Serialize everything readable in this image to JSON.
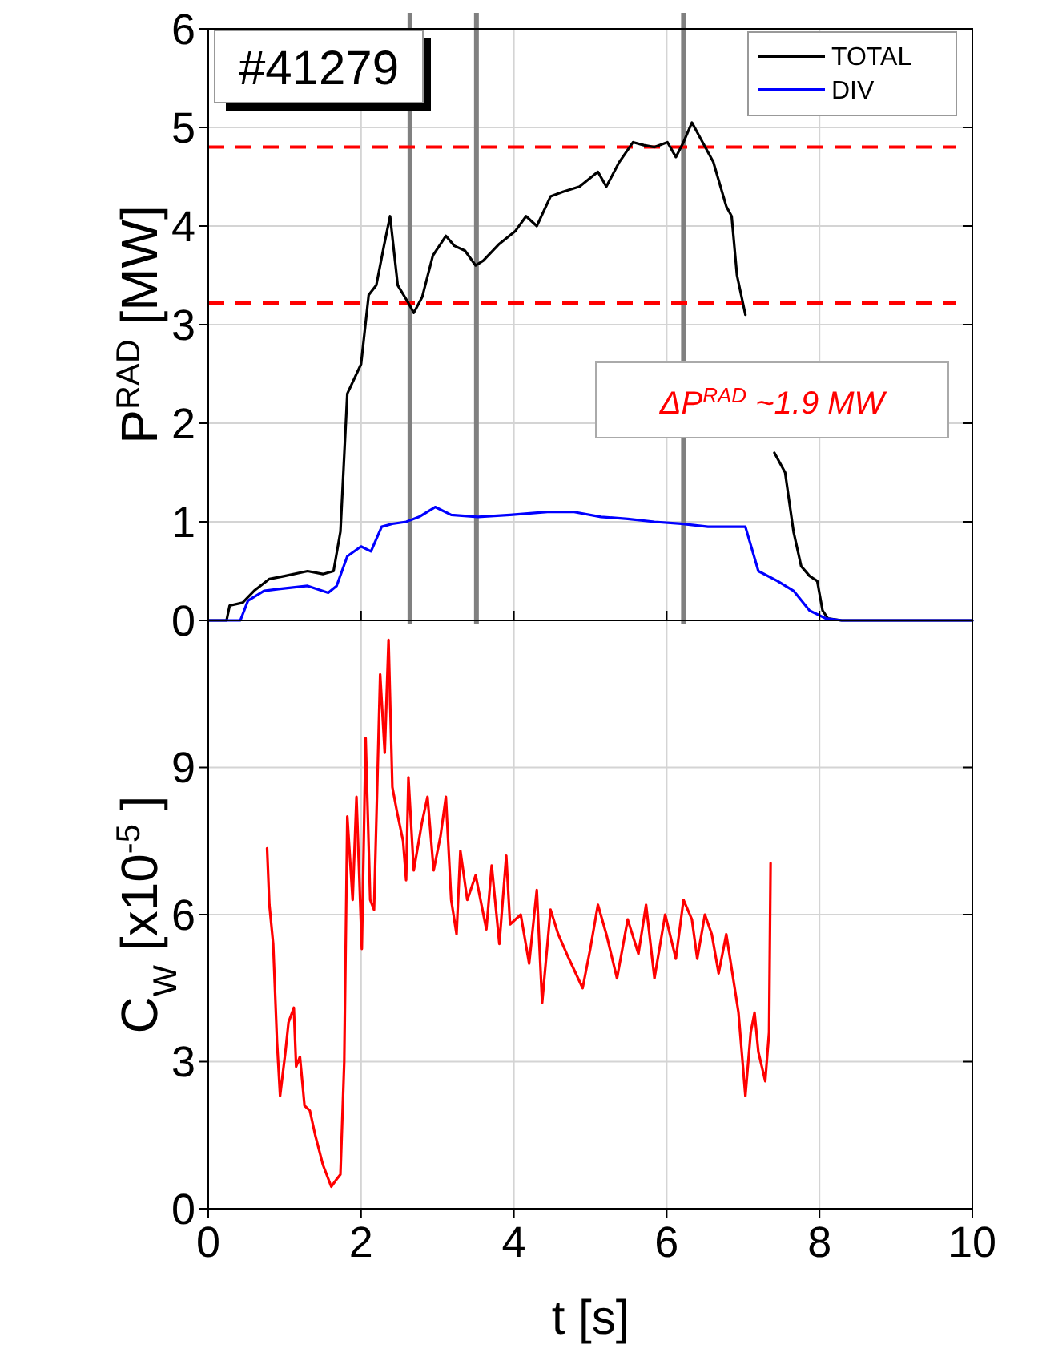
{
  "chart_data": [
    {
      "type": "line",
      "ylabel": "P$^{RAD}$ [MW]",
      "xlim": [
        0,
        10
      ],
      "xticks": [
        0,
        2,
        4,
        6,
        8,
        10
      ],
      "ylim": [
        0,
        6
      ],
      "yticks": [
        0,
        1,
        2,
        3,
        4,
        5,
        6
      ],
      "tick_labels": "y",
      "grid": true,
      "legend": "top right",
      "series": [
        {
          "name": "TOTAL",
          "color": "#000000",
          "x": [
            0,
            0.24,
            0.28,
            0.45,
            0.6,
            0.8,
            1.0,
            1.3,
            1.5,
            1.64,
            1.73,
            1.82,
            2.0,
            2.1,
            2.2,
            2.3,
            2.38,
            2.48,
            2.62,
            2.69,
            2.8,
            2.94,
            3.11,
            3.22,
            3.36,
            3.5,
            3.6,
            3.81,
            4.02,
            4.16,
            4.3,
            4.48,
            4.65,
            4.86,
            5.1,
            5.21,
            5.38,
            5.56,
            5.7,
            5.84,
            6.01,
            6.12,
            6.22,
            6.33,
            6.47,
            6.61,
            6.78,
            6.85,
            6.92,
            7.03,
            7.1,
            7.24,
            7.41,
            7.55,
            7.66,
            7.76,
            7.87,
            7.97,
            8.04,
            8.11,
            8.29,
            10
          ],
          "values": [
            0,
            0,
            0.15,
            0.18,
            0.3,
            0.42,
            0.45,
            0.5,
            0.47,
            0.5,
            0.9,
            2.3,
            2.6,
            3.3,
            3.4,
            3.8,
            4.1,
            3.4,
            3.22,
            3.12,
            3.28,
            3.7,
            3.9,
            3.8,
            3.75,
            3.6,
            3.65,
            3.82,
            3.95,
            4.1,
            4.0,
            4.3,
            4.35,
            4.4,
            4.55,
            4.4,
            4.65,
            4.85,
            4.82,
            4.8,
            4.85,
            4.7,
            4.85,
            5.05,
            4.85,
            4.65,
            4.2,
            4.1,
            3.5,
            3.1,
            null,
            null,
            1.7,
            1.5,
            0.9,
            0.55,
            0.45,
            0.4,
            0.1,
            0.02,
            0,
            0
          ]
        },
        {
          "name": "DIV",
          "color": "#0000ff",
          "x": [
            0,
            0.42,
            0.52,
            0.73,
            0.94,
            1.3,
            1.57,
            1.68,
            1.82,
            2.0,
            2.13,
            2.27,
            2.41,
            2.59,
            2.76,
            2.97,
            3.18,
            3.53,
            3.95,
            4.44,
            4.79,
            5.14,
            5.49,
            5.84,
            6.19,
            6.54,
            6.89,
            7.03,
            7.2,
            7.45,
            7.66,
            7.87,
            8.08,
            8.29,
            10
          ],
          "values": [
            0,
            0,
            0.2,
            0.3,
            0.32,
            0.35,
            0.28,
            0.35,
            0.65,
            0.75,
            0.7,
            0.95,
            0.98,
            1.0,
            1.05,
            1.15,
            1.07,
            1.05,
            1.07,
            1.1,
            1.1,
            1.05,
            1.03,
            1.0,
            0.98,
            0.95,
            0.95,
            0.95,
            0.5,
            0.4,
            0.3,
            0.1,
            0.02,
            0,
            0
          ]
        }
      ],
      "ref_lines": [
        {
          "axis": "x",
          "value": 2.64,
          "color": "#808080",
          "line_style": "solid"
        },
        {
          "axis": "x",
          "value": 3.51,
          "color": "#808080",
          "line_style": "solid"
        },
        {
          "axis": "x",
          "value": 6.22,
          "color": "#808080",
          "line_style": "solid"
        },
        {
          "axis": "y",
          "value": 4.8,
          "color": "#ff0000",
          "line_style": "dashed"
        },
        {
          "axis": "y",
          "value": 3.22,
          "color": "#ff0000",
          "line_style": "dashed"
        }
      ],
      "annotations": [
        "#41279",
        "ΔP$^{RAD}$  ~1.9 MW"
      ]
    },
    {
      "type": "line",
      "xlabel": "t [s]",
      "ylabel": "C$_{W}$ [x10$^{-5}$]",
      "xlim": [
        0,
        10
      ],
      "xticks": [
        0,
        2,
        4,
        6,
        8,
        10
      ],
      "ylim": [
        0,
        12
      ],
      "yticks": [
        0,
        3,
        6,
        9
      ],
      "grid": true,
      "series": [
        {
          "color": "#ff0000",
          "x": [
            0.77,
            0.8,
            0.85,
            0.9,
            0.94,
            1.01,
            1.05,
            1.12,
            1.15,
            1.2,
            1.26,
            1.33,
            1.4,
            1.5,
            1.61,
            1.68,
            1.73,
            1.78,
            1.82,
            1.89,
            1.94,
            2.01,
            2.06,
            2.12,
            2.17,
            2.25,
            2.31,
            2.36,
            2.41,
            2.47,
            2.55,
            2.59,
            2.62,
            2.69,
            2.8,
            2.87,
            2.95,
            3.04,
            3.11,
            3.18,
            3.25,
            3.3,
            3.39,
            3.5,
            3.64,
            3.71,
            3.81,
            3.9,
            3.95,
            4.09,
            4.2,
            4.3,
            4.37,
            4.48,
            4.58,
            4.72,
            4.9,
            5.0,
            5.1,
            5.21,
            5.35,
            5.49,
            5.63,
            5.73,
            5.84,
            5.98,
            6.12,
            6.22,
            6.33,
            6.4,
            6.5,
            6.59,
            6.68,
            6.78,
            6.89,
            6.94,
            7.03,
            7.1,
            7.15,
            7.2,
            7.29,
            7.34,
            7.36
          ],
          "values": [
            7.35,
            6.2,
            5.4,
            3.4,
            2.3,
            3.2,
            3.8,
            4.1,
            2.9,
            3.1,
            2.1,
            2.0,
            1.5,
            0.9,
            0.45,
            0.6,
            0.7,
            3.0,
            8.0,
            6.3,
            8.4,
            5.3,
            9.6,
            6.3,
            6.1,
            10.9,
            9.3,
            11.6,
            8.6,
            8.1,
            7.5,
            6.7,
            8.8,
            6.9,
            7.9,
            8.4,
            6.9,
            7.6,
            8.4,
            6.3,
            5.6,
            7.3,
            6.3,
            6.8,
            5.7,
            7.0,
            5.4,
            7.2,
            5.8,
            6.0,
            5.0,
            6.5,
            4.2,
            6.1,
            5.6,
            5.1,
            4.5,
            5.3,
            6.2,
            5.6,
            4.7,
            5.9,
            5.2,
            6.2,
            4.7,
            6.0,
            5.1,
            6.3,
            5.9,
            5.1,
            6.0,
            5.6,
            4.8,
            5.6,
            4.5,
            4.0,
            2.3,
            3.6,
            4.0,
            3.2,
            2.6,
            3.6,
            7.05
          ]
        }
      ]
    }
  ]
}
